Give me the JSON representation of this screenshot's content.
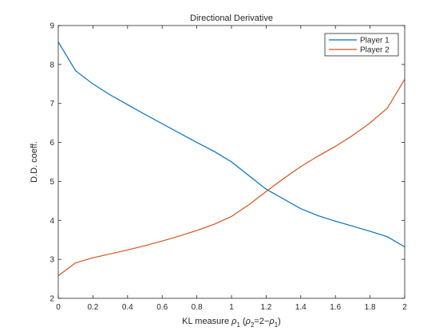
{
  "chart_data": {
    "type": "line",
    "title": "Directional Derivative",
    "xlabel": {
      "main": "KL measure ",
      "rho": "ρ",
      "sub1": "1",
      "paren_open": " (",
      "rho2": "ρ",
      "sub2": "2",
      "mid": "=2−",
      "rho3": "ρ",
      "sub3": "1",
      "paren_close": ")"
    },
    "ylabel": "D.D. coeff.",
    "xlim": [
      0,
      2
    ],
    "ylim": [
      2,
      9
    ],
    "xticks": [
      0,
      0.2,
      0.4,
      0.6,
      0.8,
      1,
      1.2,
      1.4,
      1.6,
      1.8,
      2
    ],
    "xtick_labels": [
      "0",
      "0.2",
      "0.4",
      "0.6",
      "0.8",
      "1",
      "1.2",
      "1.4",
      "1.6",
      "1.8",
      "2"
    ],
    "yticks": [
      2,
      3,
      4,
      5,
      6,
      7,
      8,
      9
    ],
    "ytick_labels": [
      "2",
      "3",
      "4",
      "5",
      "6",
      "7",
      "8",
      "9"
    ],
    "grid": false,
    "legend_position": "top-right",
    "x": [
      0,
      0.1,
      0.2,
      0.3,
      0.4,
      0.5,
      0.6,
      0.7,
      0.8,
      0.9,
      1.0,
      1.1,
      1.2,
      1.3,
      1.4,
      1.5,
      1.6,
      1.7,
      1.8,
      1.9,
      2.0
    ],
    "series": [
      {
        "name": "Player 1",
        "color": "#0072BD",
        "values": [
          8.58,
          7.84,
          7.5,
          7.22,
          6.97,
          6.72,
          6.48,
          6.24,
          6.0,
          5.77,
          5.5,
          5.15,
          4.8,
          4.55,
          4.3,
          4.12,
          3.98,
          3.85,
          3.72,
          3.58,
          3.32
        ]
      },
      {
        "name": "Player 2",
        "color": "#D95319",
        "values": [
          2.58,
          2.91,
          3.04,
          3.14,
          3.24,
          3.35,
          3.47,
          3.6,
          3.74,
          3.9,
          4.1,
          4.4,
          4.74,
          5.07,
          5.38,
          5.65,
          5.9,
          6.18,
          6.5,
          6.88,
          7.62
        ]
      }
    ]
  }
}
